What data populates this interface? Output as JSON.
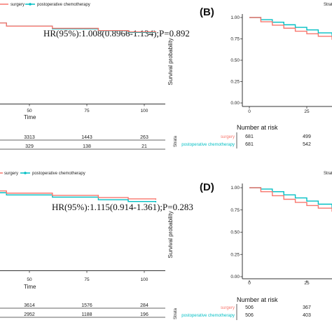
{
  "colors": {
    "surgery": "#F8766D",
    "chemo": "#00BFC4",
    "axis": "#333333",
    "text": "#222222"
  },
  "legend": {
    "surgery": "surgery",
    "chemo": "postoperative chemotherapy"
  },
  "strata_label": "Strata",
  "chart_data": [
    {
      "type": "line",
      "id": "top-left",
      "hr_text": "HR(95%):1.008(0.8966-1.134);P=0.892",
      "xlabel": "Time",
      "x_ticks": [
        "50",
        "75",
        "100"
      ],
      "xlim": [
        0,
        105
      ],
      "ylim": [
        0,
        1
      ],
      "series": [
        {
          "name": "surgery",
          "x": [
            0,
            20,
            40,
            60,
            80,
            93,
            105
          ],
          "y": [
            0.93,
            0.9,
            0.865,
            0.84,
            0.815,
            0.8,
            0.795
          ]
        },
        {
          "name": "postoperative chemotherapy",
          "x": [
            0,
            20,
            40,
            60,
            80,
            93,
            105
          ],
          "y": [
            0.94,
            0.9,
            0.865,
            0.835,
            0.812,
            0.795,
            0.795
          ]
        }
      ],
      "risk_table": {
        "surgery": [
          "3313",
          "1443",
          "263"
        ],
        "postoperative chemotherapy": [
          "329",
          "138",
          "21"
        ]
      }
    },
    {
      "type": "line",
      "id": "B",
      "panel_label": "(B)",
      "ylabel": "Survival probability",
      "y_ticks": [
        "1.00",
        "0.75",
        "0.50",
        "0.25",
        "0.00"
      ],
      "x_ticks": [
        "0",
        "25"
      ],
      "xlim": [
        0,
        36
      ],
      "ylim": [
        0,
        1
      ],
      "series": [
        {
          "name": "surgery",
          "x": [
            0,
            5,
            10,
            15,
            20,
            25,
            30,
            36
          ],
          "y": [
            1.0,
            0.95,
            0.91,
            0.875,
            0.84,
            0.81,
            0.78,
            0.74
          ]
        },
        {
          "name": "postoperative chemotherapy",
          "x": [
            0,
            5,
            10,
            15,
            20,
            25,
            30,
            36
          ],
          "y": [
            1.0,
            0.975,
            0.945,
            0.915,
            0.885,
            0.855,
            0.82,
            0.78
          ]
        }
      ],
      "risk_title": "Number at risk",
      "risk_table": {
        "surgery": [
          "681",
          "499"
        ],
        "postoperative chemotherapy": [
          "681",
          "542"
        ]
      }
    },
    {
      "type": "line",
      "id": "bottom-left",
      "hr_text": "HR(95%):1.115(0.914-1.361);P=0.283",
      "xlabel": "Time",
      "x_ticks": [
        "50",
        "75",
        "100"
      ],
      "xlim": [
        0,
        105
      ],
      "ylim": [
        0,
        1
      ],
      "series": [
        {
          "name": "surgery",
          "x": [
            0,
            20,
            40,
            60,
            80,
            93,
            105
          ],
          "y": [
            0.93,
            0.9,
            0.875,
            0.85,
            0.825,
            0.81,
            0.8
          ]
        },
        {
          "name": "postoperative chemotherapy",
          "x": [
            0,
            20,
            40,
            60,
            80,
            93,
            105
          ],
          "y": [
            0.92,
            0.88,
            0.855,
            0.83,
            0.8,
            0.78,
            0.77
          ]
        }
      ],
      "risk_table": {
        "surgery": [
          "3614",
          "1576",
          "284"
        ],
        "postoperative chemotherapy": [
          "2952",
          "1188",
          "196"
        ]
      }
    },
    {
      "type": "line",
      "id": "D",
      "panel_label": "(D)",
      "ylabel": "Survival probability",
      "y_ticks": [
        "1.00",
        "0.75",
        "0.50",
        "0.25",
        "0.00"
      ],
      "x_ticks": [
        "0",
        "25"
      ],
      "xlim": [
        0,
        36
      ],
      "ylim": [
        0,
        1
      ],
      "series": [
        {
          "name": "surgery",
          "x": [
            0,
            5,
            10,
            15,
            20,
            25,
            30,
            36
          ],
          "y": [
            1.0,
            0.955,
            0.91,
            0.87,
            0.835,
            0.8,
            0.77,
            0.73
          ]
        },
        {
          "name": "postoperative chemotherapy",
          "x": [
            0,
            5,
            10,
            15,
            20,
            25,
            30,
            36
          ],
          "y": [
            1.0,
            0.985,
            0.955,
            0.92,
            0.885,
            0.85,
            0.815,
            0.76
          ]
        }
      ],
      "risk_title": "Number at risk",
      "risk_table": {
        "surgery": [
          "506",
          "367"
        ],
        "postoperative chemotherapy": [
          "506",
          "403"
        ]
      }
    }
  ]
}
